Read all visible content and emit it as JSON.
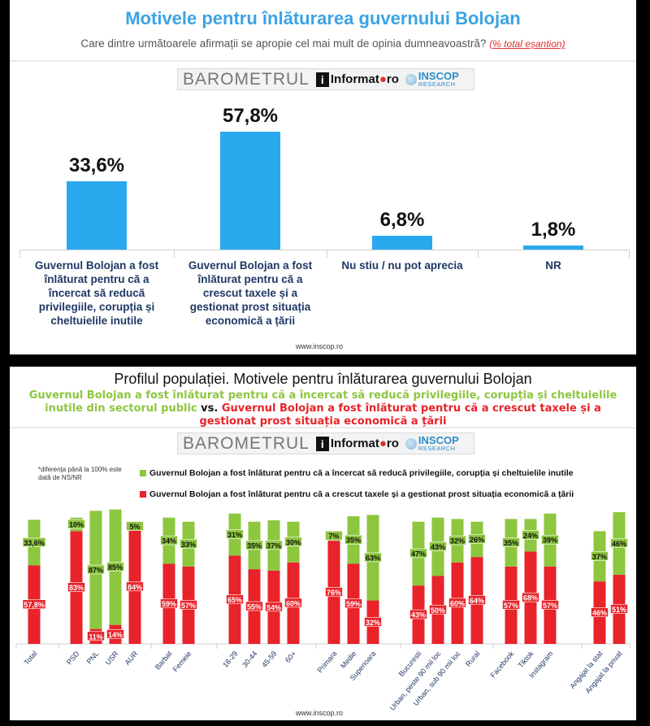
{
  "top": {
    "title": "Motivele pentru înlăturarea guvernului Bolojan",
    "subtitle": "Care dintre următoarele afirmații se apropie cel mai mult de opinia dumneavoastră?",
    "subtitle_note": "(% total eșantion)",
    "url": "www.inscop.ro"
  },
  "brand": {
    "barometrul": "BAROMETRUL",
    "info_letter": "i",
    "informat": "Informat",
    "ro": "ro",
    "inscop": "INSCOP",
    "research": "RESEARCH"
  },
  "bottom": {
    "title": "Profilul populației. Motivele pentru înlăturarea guvernului Bolojan",
    "subtitle_green": "Guvernul Bolojan a fost înlăturat pentru că a încercat să reducă privilegiile, corupția și cheltuielile inutile din sectorul public",
    "subtitle_vs": " vs. ",
    "subtitle_red": "Guvernul Bolojan a fost înlăturat pentru că a crescut taxele și a gestionat prost situația economică a țării",
    "footnote": "*diferența până la 100% este dată de NS/NR",
    "url": "www.inscop.ro"
  },
  "colors": {
    "blue": "#2aa8ee",
    "green": "#8dc63f",
    "red": "#e8232a",
    "title_blue": "#3ba3e4"
  },
  "chart_data": [
    {
      "type": "bar",
      "categories": [
        "Guvernul Bolojan a fost înlăturat pentru că a încercat să reducă privilegiile, corupția și cheltuielile inutile",
        "Guvernul Bolojan a fost înlăturat pentru că a crescut taxele și a gestionat prost situația economică a țării",
        "Nu stiu / nu pot aprecia",
        "NR"
      ],
      "values": [
        33.6,
        57.8,
        6.8,
        1.8
      ],
      "value_labels": [
        "33,6%",
        "57,8%",
        "6,8%",
        "1,8%"
      ],
      "ylim": [
        0,
        60
      ],
      "grid": false,
      "title": "Motivele pentru înlăturarea guvernului Bolojan"
    },
    {
      "type": "bar",
      "stacked": true,
      "legend_position": "top",
      "series": [
        {
          "name": "Guvernul Bolojan a fost înlăturat pentru că a încercat să reducă privilegiile, corupția și cheltuielile inutile",
          "color": "#8dc63f",
          "values": [
            33.6,
            10,
            87,
            85,
            5,
            34,
            33,
            31,
            35,
            37,
            30,
            7,
            35,
            63,
            47,
            43,
            32,
            26,
            35,
            24,
            39,
            37,
            46
          ],
          "labels": [
            "33,6%",
            "10%",
            "87%",
            "85%",
            "5%",
            "34%",
            "33%",
            "31%",
            "35%",
            "37%",
            "30%",
            "7%",
            "35%",
            "63%",
            "47%",
            "43%",
            "32%",
            "26%",
            "35%",
            "24%",
            "39%",
            "37%",
            "46%"
          ]
        },
        {
          "name": "Guvernul Bolojan a fost înlăturat pentru că a crescut taxele și a gestionat prost situația economică a țării",
          "color": "#e8232a",
          "values": [
            57.8,
            83,
            11,
            14,
            84,
            59,
            57,
            65,
            55,
            54,
            60,
            76,
            59,
            32,
            43,
            50,
            60,
            64,
            57,
            68,
            57,
            46,
            51
          ],
          "labels": [
            "57,8%",
            "83%",
            "11%",
            "14%",
            "84%",
            "59%",
            "57%",
            "65%",
            "55%",
            "54%",
            "60%",
            "76%",
            "59%",
            "32%",
            "43%",
            "50%",
            "60%",
            "64%",
            "57%",
            "68%",
            "57%",
            "46%",
            "51%"
          ]
        }
      ],
      "categories": [
        "Total",
        "PSD",
        "PNL",
        "USR",
        "AUR",
        "Barbat",
        "Femeie",
        "18-29",
        "30-44",
        "45-59",
        "60+",
        "Primara",
        "Medie",
        "Superioara",
        "Bucuresti",
        "Urban, peste 90 mii loc",
        "Urban, sub 90 mii loc",
        "Rural",
        "Facebook",
        "Tiktok",
        "Instagram",
        "Angajat la stat",
        "Angajat la privat"
      ],
      "ylim": [
        0,
        100
      ]
    }
  ]
}
